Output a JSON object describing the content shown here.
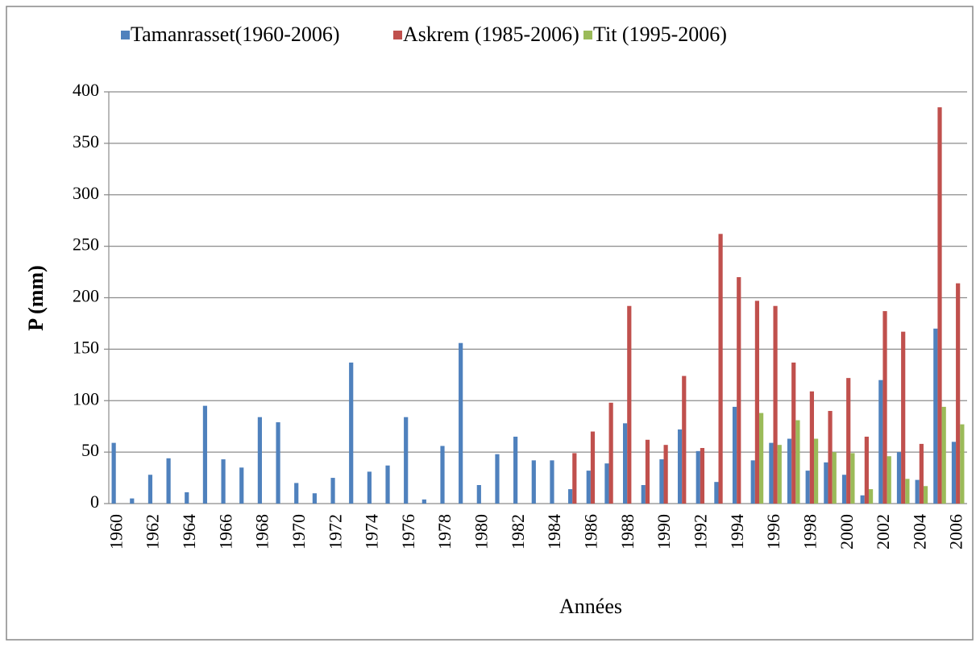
{
  "chart_data": {
    "type": "bar",
    "xlabel": "Années",
    "ylabel": "P (mm)",
    "categories": [
      "1960",
      null,
      "1962",
      null,
      "1964",
      null,
      "1966",
      null,
      "1968",
      null,
      "1970",
      null,
      "1972",
      null,
      "1974",
      null,
      "1976",
      null,
      "1978",
      null,
      "1980",
      null,
      "1982",
      null,
      "1984",
      null,
      "1986",
      null,
      "1988",
      null,
      "1990",
      null,
      "1992",
      null,
      "1994",
      null,
      "1996",
      null,
      "1998",
      null,
      "2000",
      null,
      "2002",
      null,
      "2004",
      null,
      "2006"
    ],
    "series": [
      {
        "name": "Tamanrasset(1960-2006)",
        "color": "#4f81bd",
        "values": [
          59,
          5,
          28,
          44,
          11,
          95,
          43,
          35,
          84,
          79,
          20,
          10,
          25,
          137,
          31,
          37,
          84,
          4,
          56,
          156,
          18,
          48,
          65,
          42,
          42,
          14,
          32,
          39,
          78,
          18,
          43,
          72,
          51,
          21,
          94,
          42,
          59,
          63,
          32,
          40,
          28,
          8,
          120,
          50,
          23,
          170,
          60
        ]
      },
      {
        "name": "Askrem (1985-2006)",
        "color": "#c0504d",
        "values": [
          null,
          null,
          null,
          null,
          null,
          null,
          null,
          null,
          null,
          null,
          null,
          null,
          null,
          null,
          null,
          null,
          null,
          null,
          null,
          null,
          null,
          null,
          null,
          null,
          null,
          49,
          70,
          98,
          192,
          62,
          57,
          124,
          54,
          262,
          220,
          197,
          192,
          137,
          109,
          90,
          122,
          65,
          187,
          167,
          58,
          385,
          214
        ]
      },
      {
        "name": "Tit (1995-2006)",
        "color": "#9bbb59",
        "values": [
          null,
          null,
          null,
          null,
          null,
          null,
          null,
          null,
          null,
          null,
          null,
          null,
          null,
          null,
          null,
          null,
          null,
          null,
          null,
          null,
          null,
          null,
          null,
          null,
          null,
          null,
          null,
          null,
          null,
          null,
          null,
          null,
          null,
          null,
          null,
          88,
          57,
          81,
          63,
          50,
          49,
          14,
          46,
          24,
          17,
          94,
          77
        ]
      }
    ],
    "ylim": [
      0,
      400
    ],
    "yticks": [
      0,
      50,
      100,
      150,
      200,
      250,
      300,
      350,
      400
    ],
    "grid": true
  }
}
